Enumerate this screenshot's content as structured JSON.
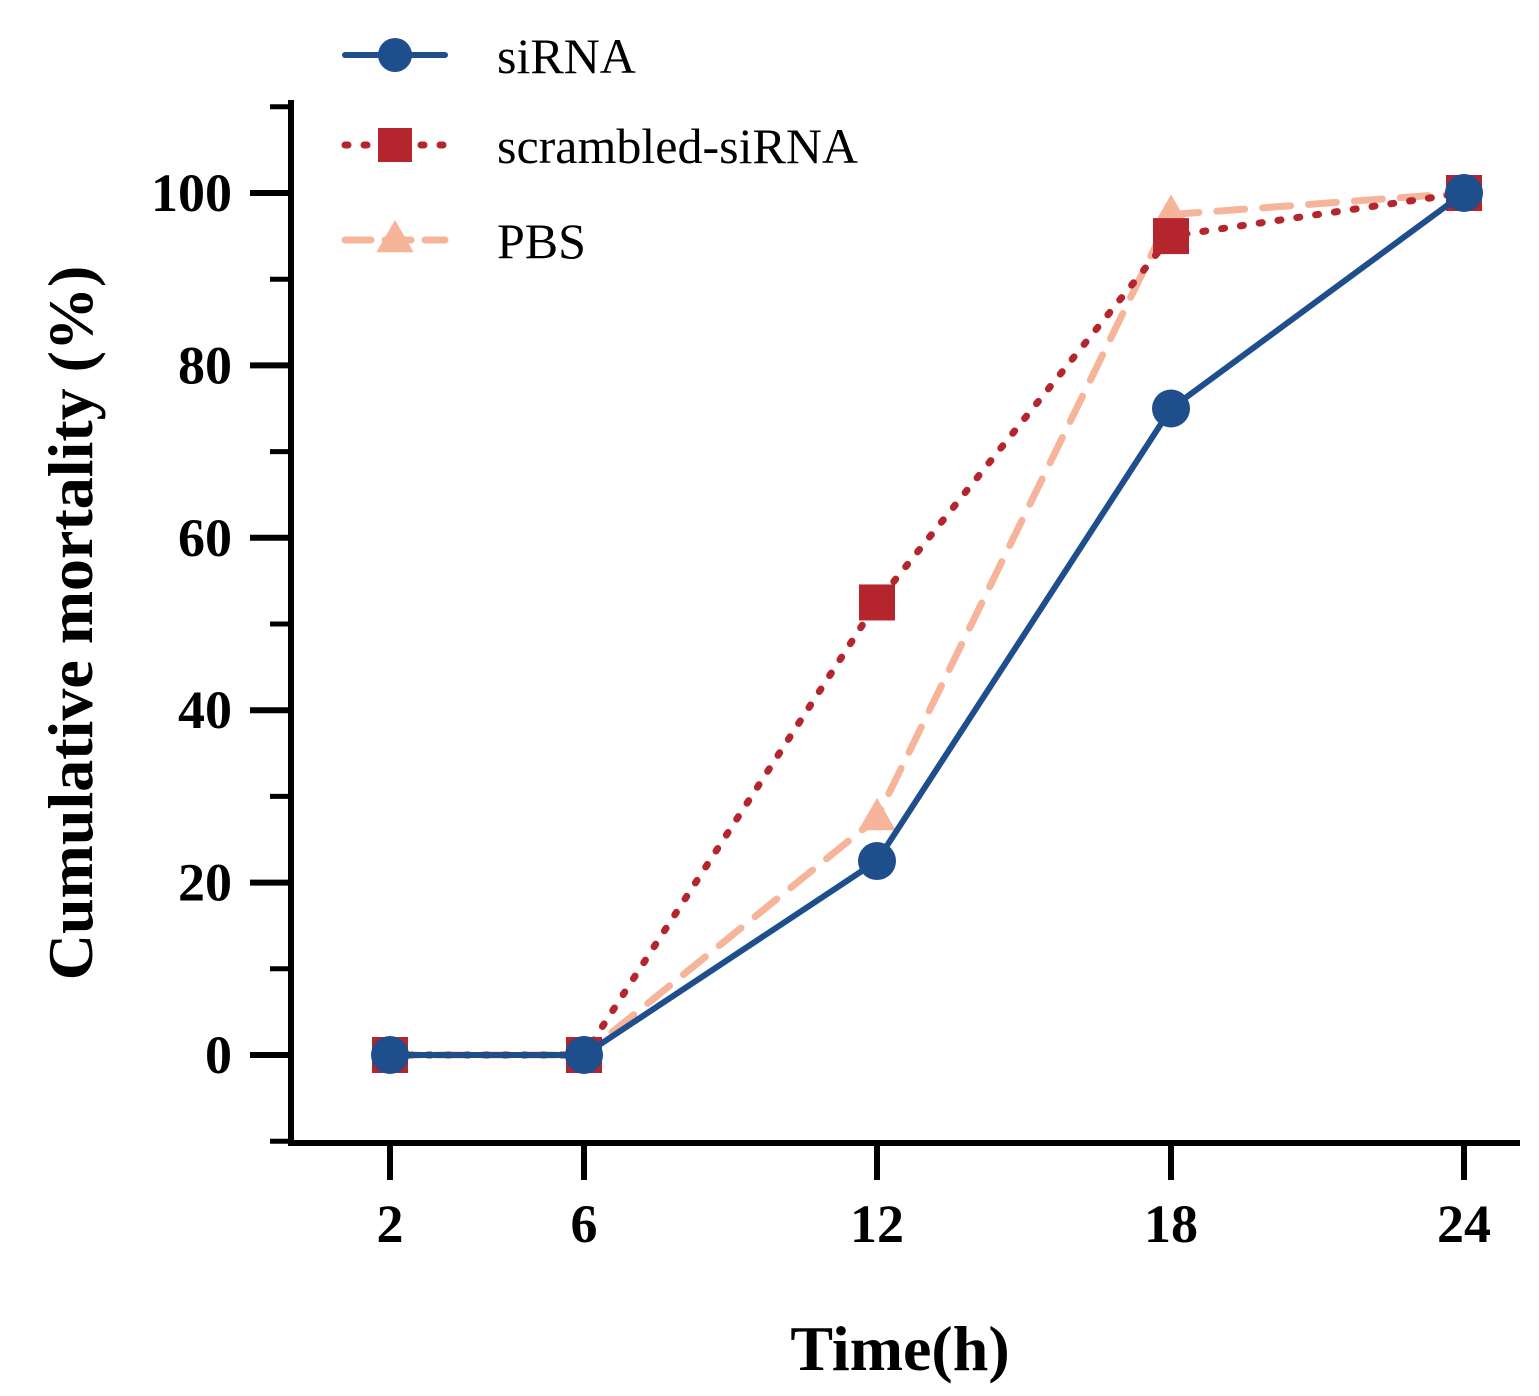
{
  "chart_data": {
    "type": "line",
    "title": "",
    "xlabel": "Time(h)",
    "ylabel": "Cumulative mortality (%)",
    "x": [
      2,
      6,
      12,
      18,
      24
    ],
    "x_tick_labels": [
      "2",
      "6",
      "12",
      "18",
      "24"
    ],
    "y_ticks": [
      0,
      20,
      40,
      60,
      80,
      100
    ],
    "y_tick_labels": [
      "0",
      "20",
      "40",
      "60",
      "80",
      "100"
    ],
    "ylim": [
      -10,
      110
    ],
    "grid": false,
    "legend_position": "top-left",
    "series": [
      {
        "name": "siRNA",
        "values": [
          0,
          0,
          22.5,
          75,
          100
        ],
        "color": "#1f4e8c",
        "line_style": "solid",
        "marker": "circle"
      },
      {
        "name": "scrambled-siRNA",
        "values": [
          0,
          0,
          52.5,
          95,
          100
        ],
        "color": "#b5252e",
        "line_style": "dotted",
        "marker": "square"
      },
      {
        "name": "PBS",
        "values": [
          0,
          0,
          27.5,
          97.5,
          100
        ],
        "color": "#f6b49a",
        "line_style": "dashed",
        "marker": "triangle"
      }
    ]
  }
}
